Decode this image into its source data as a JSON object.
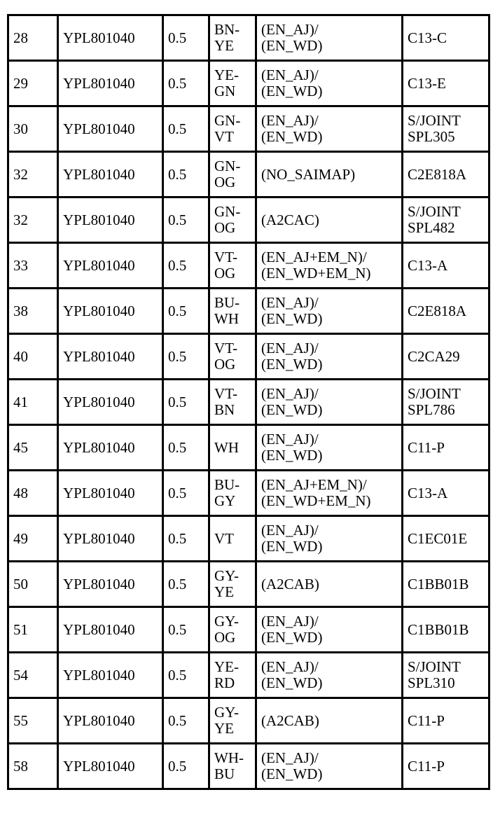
{
  "rows": [
    [
      "28",
      "YPL801040",
      "0.5",
      "BN-\nYE",
      "(EN_AJ)/\n(EN_WD)",
      "C13-C"
    ],
    [
      "29",
      "YPL801040",
      "0.5",
      "YE-\nGN",
      "(EN_AJ)/\n(EN_WD)",
      "C13-E"
    ],
    [
      "30",
      "YPL801040",
      "0.5",
      "GN-\nVT",
      "(EN_AJ)/\n(EN_WD)",
      "S/JOINT\nSPL305"
    ],
    [
      "32",
      "YPL801040",
      "0.5",
      "GN-\nOG",
      "(NO_SAIMAP)",
      "C2E818A"
    ],
    [
      "32",
      "YPL801040",
      "0.5",
      "GN-\nOG",
      "(A2CAC)",
      "S/JOINT\nSPL482"
    ],
    [
      "33",
      "YPL801040",
      "0.5",
      "VT-\nOG",
      "(EN_AJ+EM_N)/\n(EN_WD+EM_N)",
      "C13-A"
    ],
    [
      "38",
      "YPL801040",
      "0.5",
      "BU-\nWH",
      "(EN_AJ)/\n(EN_WD)",
      "C2E818A"
    ],
    [
      "40",
      "YPL801040",
      "0.5",
      "VT-\nOG",
      "(EN_AJ)/\n(EN_WD)",
      "C2CA29"
    ],
    [
      "41",
      "YPL801040",
      "0.5",
      "VT-\nBN",
      "(EN_AJ)/\n(EN_WD)",
      "S/JOINT\nSPL786"
    ],
    [
      "45",
      "YPL801040",
      "0.5",
      "WH",
      "(EN_AJ)/\n(EN_WD)",
      "C11-P"
    ],
    [
      "48",
      "YPL801040",
      "0.5",
      "BU-\nGY",
      "(EN_AJ+EM_N)/\n(EN_WD+EM_N)",
      "C13-A"
    ],
    [
      "49",
      "YPL801040",
      "0.5",
      "VT",
      "(EN_AJ)/\n(EN_WD)",
      "C1EC01E"
    ],
    [
      "50",
      "YPL801040",
      "0.5",
      "GY-\nYE",
      "(A2CAB)",
      "C1BB01B"
    ],
    [
      "51",
      "YPL801040",
      "0.5",
      "GY-\nOG",
      "(EN_AJ)/\n(EN_WD)",
      "C1BB01B"
    ],
    [
      "54",
      "YPL801040",
      "0.5",
      "YE-\nRD",
      "(EN_AJ)/\n(EN_WD)",
      "S/JOINT\nSPL310"
    ],
    [
      "55",
      "YPL801040",
      "0.5",
      "GY-\nYE",
      "(A2CAB)",
      "C11-P"
    ],
    [
      "58",
      "YPL801040",
      "0.5",
      "WH-\nBU",
      "(EN_AJ)/\n(EN_WD)",
      "C11-P"
    ]
  ]
}
